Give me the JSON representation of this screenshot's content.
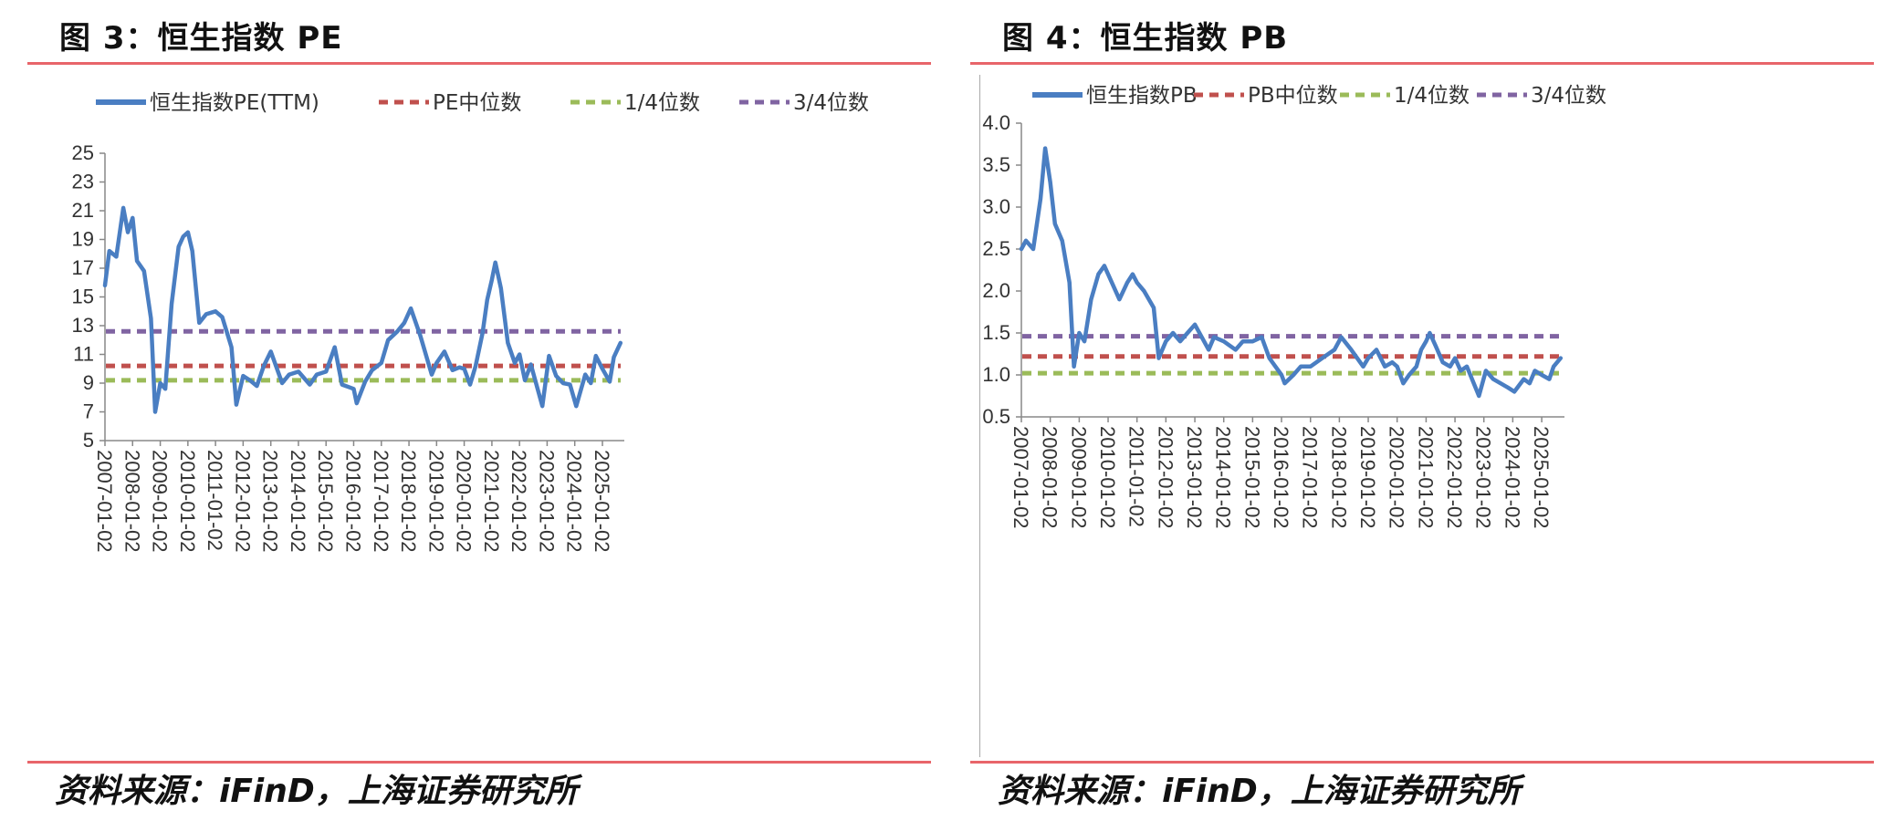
{
  "figures": [
    {
      "id": "pe",
      "title": "图 3：恒生指数 PE",
      "source": "资料来源：iFinD，上海证券研究所",
      "legend": [
        {
          "label": "恒生指数PE(TTM)",
          "color": "#4a7ec2",
          "style": "solid"
        },
        {
          "label": "PE中位数",
          "color": "#c0504d",
          "style": "dashed"
        },
        {
          "label": "1/4位数",
          "color": "#9bbb59",
          "style": "dashed"
        },
        {
          "label": "3/4位数",
          "color": "#8064a2",
          "style": "dashed"
        }
      ],
      "chart_data": {
        "type": "line",
        "ylim": [
          5,
          25
        ],
        "yticks": [
          5,
          7,
          9,
          11,
          13,
          15,
          17,
          19,
          21,
          23,
          25
        ],
        "ytick_labels": [
          "5",
          "7",
          "9",
          "11",
          "13",
          "15",
          "17",
          "19",
          "21",
          "23",
          "25"
        ],
        "xticks": [
          "2007-01-02",
          "2008-01-02",
          "2009-01-02",
          "2010-01-02",
          "2011-01-02",
          "2012-01-02",
          "2013-01-02",
          "2014-01-02",
          "2015-01-02",
          "2016-01-02",
          "2017-01-02",
          "2018-01-02",
          "2019-01-02",
          "2020-01-02",
          "2021-01-02",
          "2022-01-02",
          "2023-01-02",
          "2024-01-02",
          "2025-01-02"
        ],
        "xlim": [
          "2007-01-02",
          "2025-08-31"
        ],
        "grid": false,
        "legend_position": "top",
        "series": [
          {
            "name": "恒生指数PE(TTM)",
            "type": "line",
            "x": [
              "2007-01-02",
              "2007-03-01",
              "2007-06-01",
              "2007-09-01",
              "2007-11-01",
              "2008-01-02",
              "2008-03-01",
              "2008-06-01",
              "2008-09-01",
              "2008-10-27",
              "2009-01-02",
              "2009-03-09",
              "2009-06-01",
              "2009-09-01",
              "2009-11-01",
              "2010-01-02",
              "2010-03-01",
              "2010-06-01",
              "2010-09-01",
              "2011-01-02",
              "2011-04-01",
              "2011-08-01",
              "2011-10-04",
              "2012-01-02",
              "2012-04-01",
              "2012-07-01",
              "2012-10-01",
              "2013-01-02",
              "2013-06-01",
              "2013-09-01",
              "2014-01-02",
              "2014-06-01",
              "2014-09-01",
              "2015-01-02",
              "2015-04-27",
              "2015-08-01",
              "2016-01-02",
              "2016-02-11",
              "2016-06-01",
              "2016-09-01",
              "2017-01-02",
              "2017-04-01",
              "2017-08-01",
              "2017-11-01",
              "2018-01-26",
              "2018-06-01",
              "2018-10-30",
              "2019-01-02",
              "2019-04-15",
              "2019-08-01",
              "2019-11-01",
              "2020-01-02",
              "2020-03-19",
              "2020-06-01",
              "2020-09-01",
              "2020-11-01",
              "2021-01-02",
              "2021-02-17",
              "2021-05-01",
              "2021-08-01",
              "2021-11-01",
              "2022-01-02",
              "2022-03-15",
              "2022-06-01",
              "2022-10-31",
              "2023-01-27",
              "2023-05-01",
              "2023-08-01",
              "2023-11-01",
              "2024-01-22",
              "2024-05-20",
              "2024-08-01",
              "2024-10-07",
              "2025-01-02",
              "2025-04-08",
              "2025-06-01",
              "2025-08-29"
            ],
            "values": [
              15.8,
              18.2,
              17.8,
              21.2,
              19.5,
              20.5,
              17.5,
              16.8,
              13.5,
              7.0,
              9.0,
              8.6,
              14.5,
              18.5,
              19.2,
              19.5,
              18.2,
              13.2,
              13.8,
              14.0,
              13.6,
              11.5,
              7.5,
              9.5,
              9.2,
              8.8,
              10.2,
              11.2,
              9.0,
              9.6,
              9.8,
              8.9,
              9.6,
              9.8,
              11.5,
              8.9,
              8.6,
              7.6,
              9.1,
              9.9,
              10.4,
              12.0,
              12.6,
              13.2,
              14.2,
              12.3,
              9.6,
              10.4,
              11.2,
              9.9,
              10.1,
              10.0,
              8.9,
              10.2,
              12.5,
              14.8,
              16.2,
              17.4,
              15.6,
              11.8,
              10.4,
              11.0,
              9.2,
              10.3,
              7.4,
              10.9,
              9.5,
              9.0,
              8.9,
              7.4,
              9.6,
              9.0,
              10.9,
              10.0,
              9.1,
              10.8,
              11.8
            ]
          },
          {
            "name": "PE中位数",
            "type": "hline",
            "value": 10.2
          },
          {
            "name": "1/4位数",
            "type": "hline",
            "value": 9.2
          },
          {
            "name": "3/4位数",
            "type": "hline",
            "value": 12.6
          }
        ]
      }
    },
    {
      "id": "pb",
      "title": "图 4：恒生指数 PB",
      "source": "资料来源：iFinD，上海证券研究所",
      "legend": [
        {
          "label": "恒生指数PB",
          "color": "#4a7ec2",
          "style": "solid"
        },
        {
          "label": "PB中位数",
          "color": "#c0504d",
          "style": "dashed"
        },
        {
          "label": "1/4位数",
          "color": "#9bbb59",
          "style": "dashed"
        },
        {
          "label": "3/4位数",
          "color": "#8064a2",
          "style": "dashed"
        }
      ],
      "chart_data": {
        "type": "line",
        "ylim": [
          0.5,
          4.0
        ],
        "yticks": [
          0.5,
          1.0,
          1.5,
          2.0,
          2.5,
          3.0,
          3.5,
          4.0
        ],
        "ytick_labels": [
          "0.5",
          "1.0",
          "1.5",
          "2.0",
          "2.5",
          "3.0",
          "3.5",
          "4.0"
        ],
        "xticks": [
          "2007-01-02",
          "2008-01-02",
          "2009-01-02",
          "2010-01-02",
          "2011-01-02",
          "2012-01-02",
          "2013-01-02",
          "2014-01-02",
          "2015-01-02",
          "2016-01-02",
          "2017-01-02",
          "2018-01-02",
          "2019-01-02",
          "2020-01-02",
          "2021-01-02",
          "2022-01-02",
          "2023-01-02",
          "2024-01-02",
          "2025-01-02"
        ],
        "xlim": [
          "2007-01-02",
          "2025-08-31"
        ],
        "grid": false,
        "legend_position": "top",
        "series": [
          {
            "name": "恒生指数PB",
            "type": "line",
            "x": [
              "2007-01-02",
              "2007-03-01",
              "2007-06-01",
              "2007-09-01",
              "2007-10-30",
              "2008-01-02",
              "2008-03-01",
              "2008-06-01",
              "2008-09-01",
              "2008-10-27",
              "2009-01-02",
              "2009-03-09",
              "2009-06-01",
              "2009-09-01",
              "2009-11-15",
              "2010-01-02",
              "2010-05-25",
              "2010-09-01",
              "2010-11-08",
              "2011-01-02",
              "2011-04-01",
              "2011-08-01",
              "2011-10-04",
              "2012-01-02",
              "2012-04-01",
              "2012-07-01",
              "2012-10-01",
              "2013-01-02",
              "2013-06-25",
              "2013-09-01",
              "2014-01-02",
              "2014-06-01",
              "2014-09-01",
              "2015-01-02",
              "2015-04-27",
              "2015-08-01",
              "2016-01-02",
              "2016-02-11",
              "2016-06-01",
              "2016-09-01",
              "2017-01-02",
              "2017-06-01",
              "2017-11-01",
              "2018-01-26",
              "2018-06-01",
              "2018-10-30",
              "2019-01-02",
              "2019-04-15",
              "2019-08-01",
              "2019-11-01",
              "2020-01-02",
              "2020-03-19",
              "2020-06-01",
              "2020-09-01",
              "2020-11-01",
              "2021-01-02",
              "2021-02-17",
              "2021-05-01",
              "2021-08-01",
              "2021-11-01",
              "2022-01-02",
              "2022-03-15",
              "2022-06-01",
              "2022-10-31",
              "2023-01-27",
              "2023-05-01",
              "2023-08-01",
              "2023-11-01",
              "2024-01-22",
              "2024-05-20",
              "2024-08-01",
              "2024-10-07",
              "2025-01-02",
              "2025-04-08",
              "2025-06-01",
              "2025-08-29"
            ],
            "values": [
              2.5,
              2.6,
              2.5,
              3.1,
              3.7,
              3.3,
              2.8,
              2.6,
              2.1,
              1.1,
              1.5,
              1.4,
              1.9,
              2.2,
              2.3,
              2.2,
              1.9,
              2.1,
              2.2,
              2.1,
              2.0,
              1.8,
              1.2,
              1.4,
              1.5,
              1.4,
              1.5,
              1.6,
              1.3,
              1.45,
              1.4,
              1.3,
              1.4,
              1.4,
              1.45,
              1.2,
              1.0,
              0.9,
              1.0,
              1.1,
              1.1,
              1.2,
              1.3,
              1.45,
              1.3,
              1.1,
              1.2,
              1.3,
              1.1,
              1.15,
              1.1,
              0.9,
              1.0,
              1.1,
              1.3,
              1.4,
              1.5,
              1.35,
              1.15,
              1.1,
              1.2,
              1.05,
              1.1,
              0.75,
              1.05,
              0.95,
              0.9,
              0.85,
              0.8,
              0.95,
              0.9,
              1.05,
              1.0,
              0.95,
              1.1,
              1.2
            ]
          },
          {
            "name": "PB中位数",
            "type": "hline",
            "value": 1.22
          },
          {
            "name": "1/4位数",
            "type": "hline",
            "value": 1.02
          },
          {
            "name": "3/4位数",
            "type": "hline",
            "value": 1.46
          }
        ]
      }
    }
  ]
}
